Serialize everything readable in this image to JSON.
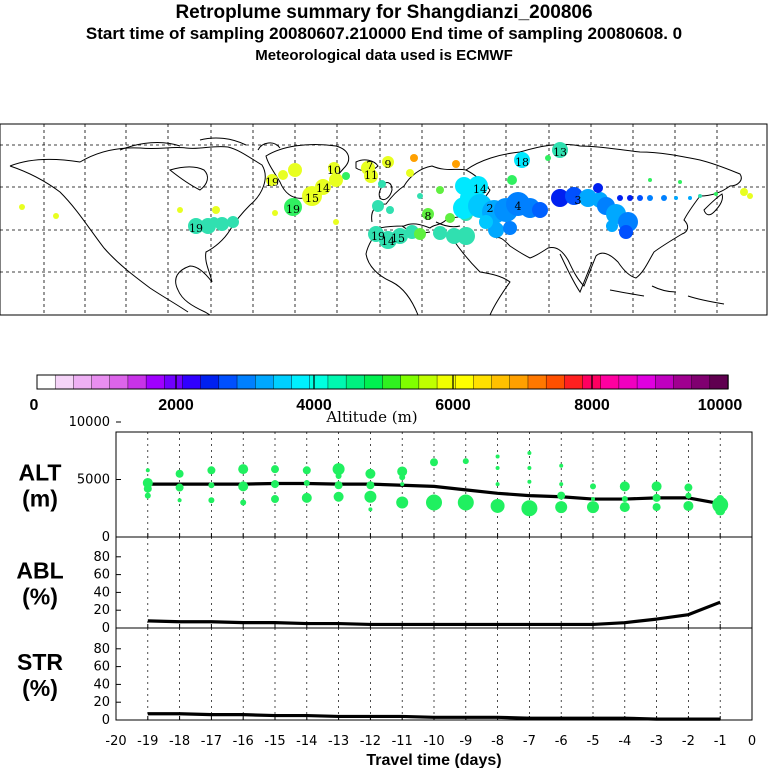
{
  "header": {
    "title": "Retroplume summary for Shangdianzi_200806",
    "subtitle": "Start time of sampling 20080607.210000      End time of sampling 20080608.      0",
    "met_data": "Meteorological data used is ECMWF"
  },
  "colorbar": {
    "tick_labels": [
      "0",
      "2000",
      "4000",
      "6000",
      "8000",
      "10000"
    ],
    "label": "Altitude (m)",
    "colors": [
      "#ffffff",
      "#f5d4f8",
      "#eeb0f4",
      "#e88ef0",
      "#dc64ea",
      "#c832e8",
      "#a000ff",
      "#7000ff",
      "#3000ff",
      "#0020f0",
      "#0050ff",
      "#0080ff",
      "#00a8ff",
      "#00d0ff",
      "#00f0ff",
      "#00ffe0",
      "#00f8b0",
      "#00f080",
      "#00f050",
      "#30f020",
      "#80ff00",
      "#c0ff00",
      "#f0ff00",
      "#ffff00",
      "#ffe000",
      "#ffc000",
      "#ffa000",
      "#ff7800",
      "#ff5000",
      "#ff2020",
      "#ff0060",
      "#ff00a0",
      "#f000c0",
      "#e000e0",
      "#c000c0",
      "#a00090",
      "#800070",
      "#600050"
    ]
  },
  "map_labels": [
    {
      "t": "19",
      "c": "#22e08a"
    },
    {
      "t": "18",
      "c": "#00e8ff"
    },
    {
      "t": "19",
      "c": "#e8ff20"
    },
    {
      "t": "19",
      "c": "#30f060"
    },
    {
      "t": "15",
      "c": "#e8ff20"
    },
    {
      "t": "14",
      "c": "#e8ff20"
    },
    {
      "t": "11",
      "c": "#e8ff20"
    },
    {
      "t": "10",
      "c": "#e8ff20"
    },
    {
      "t": "14",
      "c": "#00e8ff"
    },
    {
      "t": "4",
      "c": "#0080ff"
    },
    {
      "t": "3",
      "c": "#0060ff"
    },
    {
      "t": "2",
      "c": "#00a8ff"
    },
    {
      "t": "19",
      "c": "#30e0b0"
    },
    {
      "t": "15",
      "c": "#30e0b0"
    },
    {
      "t": "14",
      "c": "#30e0b0"
    },
    {
      "t": "8",
      "c": "#60f040"
    },
    {
      "t": "9",
      "c": "#f0ff00"
    },
    {
      "t": "7",
      "c": "#f8ff60"
    },
    {
      "t": "13",
      "c": "#00e8ff"
    }
  ],
  "chart_data": [
    {
      "type": "scatter",
      "name": "ALT",
      "ylabel": "ALT\n(m)",
      "y_tick_labels": [
        "10000",
        "5000",
        "0"
      ],
      "ylim": [
        0,
        10000
      ],
      "xlim": [
        -20,
        0
      ],
      "series": [
        {
          "name": "mean altitude",
          "kind": "line",
          "x": [
            -19,
            -18,
            -17,
            -16,
            -15,
            -14,
            -13,
            -12,
            -11,
            -10,
            -9,
            -8,
            -7,
            -6,
            -5,
            -4,
            -3,
            -2,
            -1
          ],
          "values": [
            4600,
            4600,
            4600,
            4600,
            4650,
            4650,
            4600,
            4600,
            4500,
            4400,
            4100,
            3800,
            3600,
            3500,
            3300,
            3300,
            3400,
            3400,
            2900
          ]
        },
        {
          "name": "particle clusters",
          "kind": "points",
          "color": "#20f060",
          "points": [
            {
              "x": -19,
              "y": 5800,
              "s": 2
            },
            {
              "x": -19,
              "y": 4700,
              "s": 5
            },
            {
              "x": -19,
              "y": 4200,
              "s": 4
            },
            {
              "x": -19,
              "y": 3600,
              "s": 3
            },
            {
              "x": -18,
              "y": 5500,
              "s": 4
            },
            {
              "x": -18,
              "y": 4300,
              "s": 4
            },
            {
              "x": -18,
              "y": 3200,
              "s": 2
            },
            {
              "x": -17,
              "y": 5800,
              "s": 4
            },
            {
              "x": -17,
              "y": 4500,
              "s": 3
            },
            {
              "x": -17,
              "y": 3200,
              "s": 3
            },
            {
              "x": -16,
              "y": 5900,
              "s": 5
            },
            {
              "x": -16,
              "y": 4400,
              "s": 5
            },
            {
              "x": -16,
              "y": 3000,
              "s": 3
            },
            {
              "x": -15,
              "y": 5900,
              "s": 4
            },
            {
              "x": -15,
              "y": 4600,
              "s": 4
            },
            {
              "x": -15,
              "y": 3300,
              "s": 4
            },
            {
              "x": -14,
              "y": 5800,
              "s": 4
            },
            {
              "x": -14,
              "y": 4700,
              "s": 3
            },
            {
              "x": -14,
              "y": 3400,
              "s": 5
            },
            {
              "x": -13,
              "y": 5900,
              "s": 6
            },
            {
              "x": -13,
              "y": 5300,
              "s": 3
            },
            {
              "x": -13,
              "y": 4500,
              "s": 4
            },
            {
              "x": -13,
              "y": 3500,
              "s": 5
            },
            {
              "x": -12,
              "y": 5500,
              "s": 5
            },
            {
              "x": -12,
              "y": 4500,
              "s": 4
            },
            {
              "x": -12,
              "y": 3500,
              "s": 6
            },
            {
              "x": -12,
              "y": 2400,
              "s": 2
            },
            {
              "x": -11,
              "y": 5700,
              "s": 5
            },
            {
              "x": -11,
              "y": 5200,
              "s": 3
            },
            {
              "x": -11,
              "y": 4600,
              "s": 2
            },
            {
              "x": -11,
              "y": 3000,
              "s": 6
            },
            {
              "x": -10,
              "y": 6500,
              "s": 4
            },
            {
              "x": -10,
              "y": 3000,
              "s": 8
            },
            {
              "x": -9,
              "y": 6600,
              "s": 3
            },
            {
              "x": -9,
              "y": 3000,
              "s": 8
            },
            {
              "x": -8,
              "y": 7000,
              "s": 2
            },
            {
              "x": -8,
              "y": 6000,
              "s": 2
            },
            {
              "x": -8,
              "y": 4600,
              "s": 2
            },
            {
              "x": -8,
              "y": 2700,
              "s": 7
            },
            {
              "x": -7,
              "y": 7300,
              "s": 2
            },
            {
              "x": -7,
              "y": 6000,
              "s": 2
            },
            {
              "x": -7,
              "y": 4800,
              "s": 2
            },
            {
              "x": -7,
              "y": 2500,
              "s": 8
            },
            {
              "x": -6,
              "y": 6200,
              "s": 2
            },
            {
              "x": -6,
              "y": 4600,
              "s": 2
            },
            {
              "x": -6,
              "y": 3600,
              "s": 4
            },
            {
              "x": -6,
              "y": 2600,
              "s": 6
            },
            {
              "x": -5,
              "y": 4400,
              "s": 3
            },
            {
              "x": -5,
              "y": 3300,
              "s": 2
            },
            {
              "x": -5,
              "y": 2600,
              "s": 6
            },
            {
              "x": -4,
              "y": 4400,
              "s": 5
            },
            {
              "x": -4,
              "y": 3300,
              "s": 3
            },
            {
              "x": -4,
              "y": 2600,
              "s": 5
            },
            {
              "x": -3,
              "y": 4400,
              "s": 5
            },
            {
              "x": -3,
              "y": 3400,
              "s": 4
            },
            {
              "x": -3,
              "y": 2600,
              "s": 4
            },
            {
              "x": -2,
              "y": 4300,
              "s": 4
            },
            {
              "x": -2,
              "y": 3600,
              "s": 3
            },
            {
              "x": -2,
              "y": 2700,
              "s": 5
            },
            {
              "x": -1,
              "y": 3300,
              "s": 4
            },
            {
              "x": -1,
              "y": 2800,
              "s": 8
            },
            {
              "x": -1,
              "y": 2300,
              "s": 5
            }
          ]
        }
      ]
    },
    {
      "type": "line",
      "name": "ABL",
      "ylabel": "ABL\n(%)",
      "y_tick_labels": [
        "80",
        "60",
        "40",
        "20",
        "0"
      ],
      "ylim": [
        0,
        100
      ],
      "xlim": [
        -20,
        0
      ],
      "series": [
        {
          "name": "ABL fraction",
          "x": [
            -19,
            -18,
            -17,
            -16,
            -15,
            -14,
            -13,
            -12,
            -11,
            -10,
            -9,
            -8,
            -7,
            -6,
            -5,
            -4,
            -3,
            -2,
            -1
          ],
          "values": [
            8,
            7,
            7,
            6,
            6,
            5,
            5,
            4,
            4,
            4,
            4,
            4,
            4,
            4,
            4,
            6,
            10,
            15,
            29
          ]
        }
      ]
    },
    {
      "type": "line",
      "name": "STR",
      "ylabel": "STR\n(%)",
      "y_tick_labels": [
        "80",
        "60",
        "40",
        "20",
        "0"
      ],
      "ylim": [
        0,
        100
      ],
      "xlim": [
        -20,
        0
      ],
      "xlabel": "Travel time (days)",
      "x_tick_labels": [
        "-20",
        "-19",
        "-18",
        "-17",
        "-16",
        "-15",
        "-14",
        "-13",
        "-12",
        "-11",
        "-10",
        "-9",
        "-8",
        "-7",
        "-6",
        "-5",
        "-4",
        "-3",
        "-2",
        "-1",
        "0"
      ],
      "series": [
        {
          "name": "STR fraction",
          "x": [
            -19,
            -18,
            -17,
            -16,
            -15,
            -14,
            -13,
            -12,
            -11,
            -10,
            -9,
            -8,
            -7,
            -6,
            -5,
            -4,
            -3,
            -2,
            -1
          ],
          "values": [
            7,
            7,
            6,
            6,
            5,
            5,
            4,
            4,
            4,
            3,
            3,
            3,
            2,
            2,
            2,
            2,
            1,
            1,
            1
          ]
        }
      ]
    }
  ]
}
